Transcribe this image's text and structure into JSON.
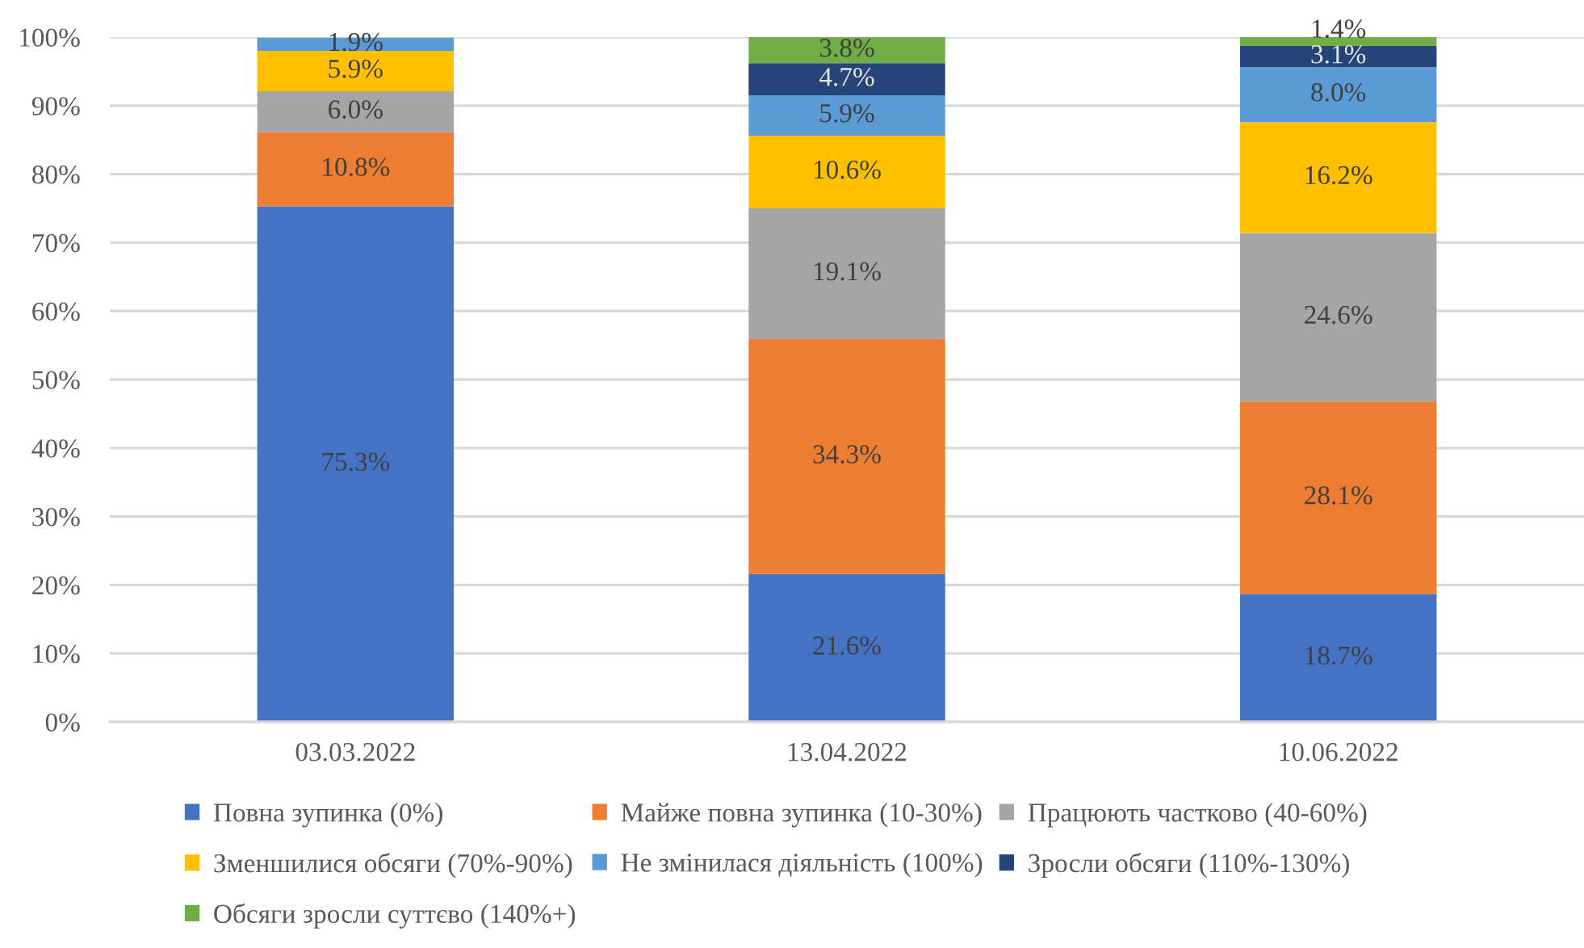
{
  "chart_data": {
    "type": "bar",
    "stacked": true,
    "categories": [
      "03.03.2022",
      "13.04.2022",
      "10.06.2022"
    ],
    "series": [
      {
        "name": "Повна зупинка (0%)",
        "color": "#4472c4",
        "values": [
          75.3,
          21.6,
          18.7
        ],
        "value_labels": [
          "75.3%",
          "21.6%",
          "18.7%"
        ]
      },
      {
        "name": "Майже повна зупинка (10-30%)",
        "color": "#ed7d31",
        "values": [
          10.8,
          34.3,
          28.1
        ],
        "value_labels": [
          "10.8%",
          "34.3%",
          "28.1%"
        ]
      },
      {
        "name": "Працюють частково (40-60%)",
        "color": "#a5a5a5",
        "values": [
          6.0,
          19.1,
          24.6
        ],
        "value_labels": [
          "6.0%",
          "19.1%",
          "24.6%"
        ]
      },
      {
        "name": "Зменшилися обсяги (70%-90%)",
        "color": "#ffc000",
        "values": [
          5.9,
          10.6,
          16.2
        ],
        "value_labels": [
          "5.9%",
          "10.6%",
          "16.2%"
        ]
      },
      {
        "name": "Не змінилася діяльність (100%)",
        "color": "#5b9bd5",
        "values": [
          1.9,
          5.9,
          8.0
        ],
        "value_labels": [
          "1.9%",
          "5.9%",
          "8.0%"
        ]
      },
      {
        "name": "Зросли обсяги (110%-130%)",
        "color": "#264478",
        "values": [
          null,
          4.7,
          3.1
        ],
        "value_labels": [
          null,
          "4.7%",
          "3.1%"
        ]
      },
      {
        "name": "Обсяги зросли суттєво (140%+)",
        "color": "#70ad47",
        "values": [
          null,
          3.8,
          1.4
        ],
        "value_labels": [
          null,
          "3.8%",
          "1.4%"
        ]
      }
    ],
    "ylim": [
      0,
      100
    ],
    "yticks": [
      {
        "value": 0,
        "label": "0%"
      },
      {
        "value": 10,
        "label": "10%"
      },
      {
        "value": 20,
        "label": "20%"
      },
      {
        "value": 30,
        "label": "30%"
      },
      {
        "value": 40,
        "label": "40%"
      },
      {
        "value": 50,
        "label": "50%"
      },
      {
        "value": 60,
        "label": "60%"
      },
      {
        "value": 70,
        "label": "70%"
      },
      {
        "value": 80,
        "label": "80%"
      },
      {
        "value": 90,
        "label": "90%"
      },
      {
        "value": 100,
        "label": "100%"
      }
    ],
    "grid": "y",
    "legend": "bottom"
  }
}
